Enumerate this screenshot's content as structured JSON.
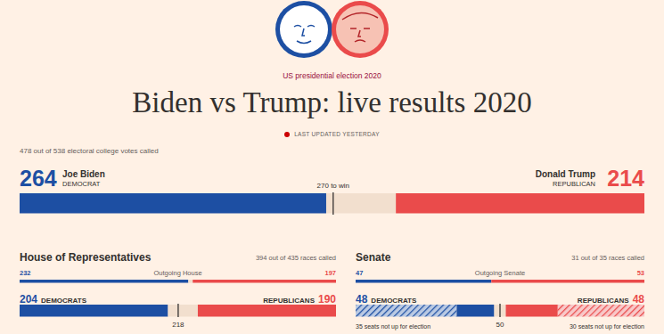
{
  "header": {
    "kicker": "US presidential election 2020",
    "title": "Biden vs Trump: live results 2020",
    "updated": "LAST UPDATED YESTERDAY"
  },
  "chart_data": [
    {
      "type": "bar",
      "orientation": "horizontal",
      "stacked": true,
      "tick_labels": false,
      "subtitle": "478 out of 538 electoral college votes called",
      "xlim": [
        0,
        538
      ],
      "threshold": {
        "value": 270,
        "label": "270 to win"
      },
      "series": [
        {
          "name": "Joe Biden",
          "party": "DEMOCRAT",
          "color": "#1d4fa3",
          "values": [
            264
          ]
        },
        {
          "name": "Donald Trump",
          "party": "REPUBLICAN",
          "color": "#ea4b4b",
          "values": [
            214
          ]
        }
      ]
    },
    {
      "type": "bar",
      "orientation": "horizontal",
      "stacked": true,
      "tick_labels": false,
      "title": "House of Representatives",
      "subtitle": "394 out of 435 races called",
      "xlim": [
        0,
        435
      ],
      "threshold": 218,
      "outgoing": {
        "label": "Outgoing House",
        "values": [
          232,
          197
        ]
      },
      "series": [
        {
          "name": "DEMOCRATS",
          "color": "#1d4fa3",
          "values": [
            204
          ]
        },
        {
          "name": "REPUBLICANS",
          "color": "#ea4b4b",
          "values": [
            190
          ]
        }
      ]
    },
    {
      "type": "bar",
      "orientation": "horizontal",
      "stacked": true,
      "tick_labels": false,
      "title": "Senate",
      "subtitle": "31 out of 35 races called",
      "xlim": [
        0,
        100
      ],
      "threshold": 50,
      "outgoing": {
        "label": "Outgoing Senate",
        "values": [
          47,
          53
        ]
      },
      "series": [
        {
          "name": "DEMOCRATS",
          "color": "#1d4fa3",
          "values": [
            48
          ],
          "not_up": {
            "value": 35,
            "label": "35 seats not up for election"
          }
        },
        {
          "name": "REPUBLICANS",
          "color": "#ea4b4b",
          "values": [
            48
          ],
          "not_up": {
            "value": 30,
            "label": "30 seats not up for election"
          }
        }
      ]
    }
  ]
}
